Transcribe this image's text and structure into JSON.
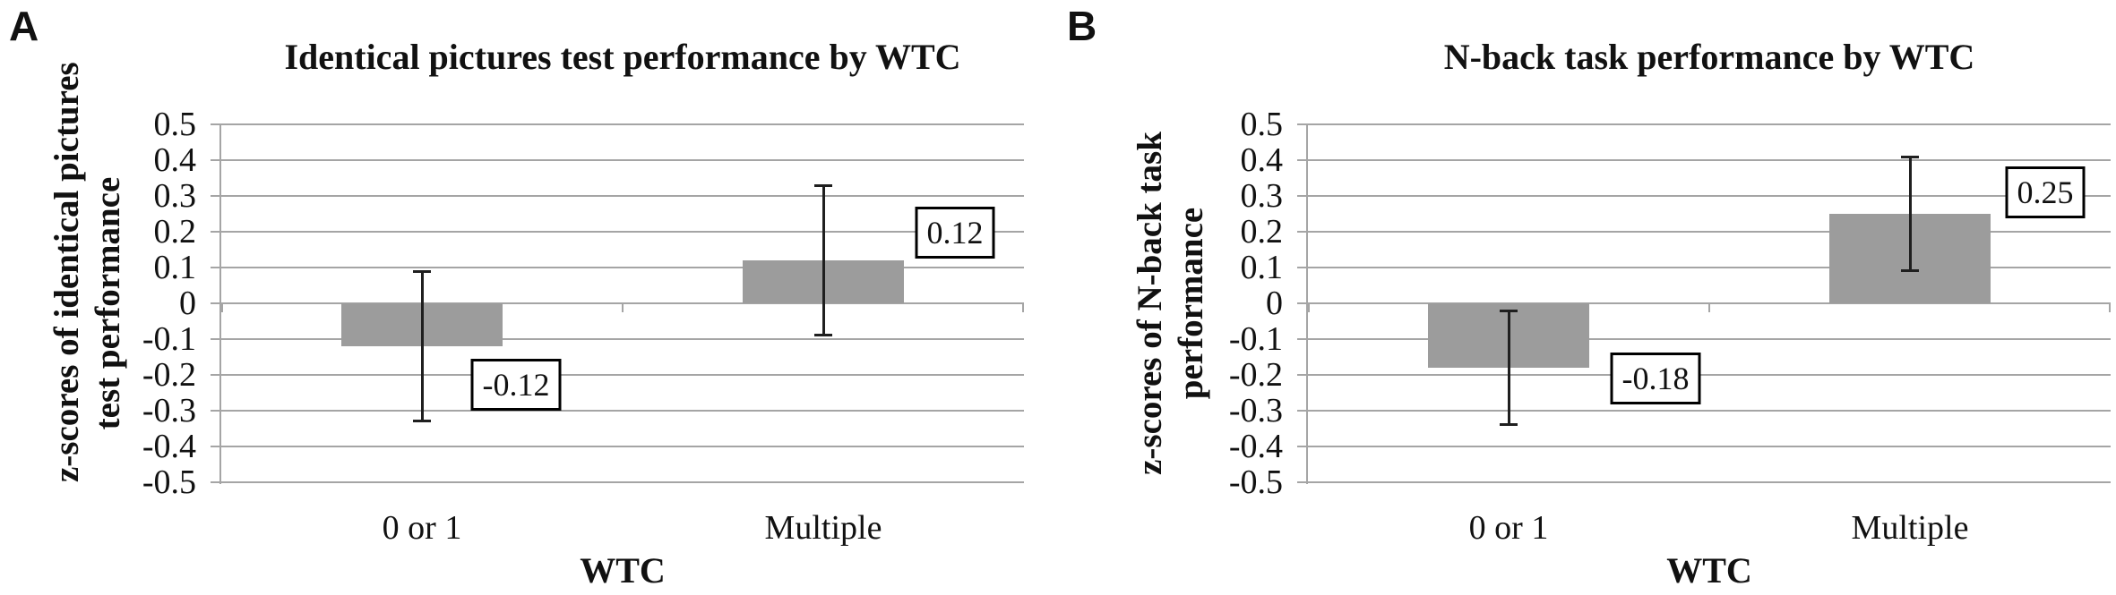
{
  "chart_data": [
    {
      "type": "bar",
      "panel_label": "A",
      "title": "Identical pictures test performance by WTC",
      "xlabel": "WTC",
      "ylabel": "z-scores of identical pictures test performance",
      "ylabel_lines": [
        "z-scores of identical pictures",
        "test performance"
      ],
      "categories": [
        "0 or 1",
        "Multiple"
      ],
      "values": [
        -0.12,
        0.12
      ],
      "error_bars": [
        [
          -0.33,
          0.09
        ],
        [
          -0.09,
          0.33
        ]
      ],
      "data_labels": [
        "-0.12",
        "0.12"
      ],
      "ylim": [
        -0.5,
        0.5
      ],
      "ytick_labels": [
        "0.5",
        "0.4",
        "0.3",
        "0.2",
        "0.1",
        "0",
        "-0.1",
        "-0.2",
        "-0.3",
        "-0.4",
        "-0.5"
      ],
      "grid": true,
      "legend": "none",
      "bar_color": "#9c9c9c",
      "gridline_color": "#a5a5a5",
      "error_bar_color": "#1f1f1f"
    },
    {
      "type": "bar",
      "panel_label": "B",
      "title": "N-back task performance by WTC",
      "xlabel": "WTC",
      "ylabel": "z-scores of N-back task performance",
      "ylabel_lines": [
        "z-scores of N-back task",
        "performance"
      ],
      "categories": [
        "0 or 1",
        "Multiple"
      ],
      "values": [
        -0.18,
        0.25
      ],
      "error_bars": [
        [
          -0.34,
          -0.02
        ],
        [
          0.09,
          0.41
        ]
      ],
      "data_labels": [
        "-0.18",
        "0.25"
      ],
      "ylim": [
        -0.5,
        0.5
      ],
      "ytick_labels": [
        "0.5",
        "0.4",
        "0.3",
        "0.2",
        "0.1",
        "0",
        "-0.1",
        "-0.2",
        "-0.3",
        "-0.4",
        "-0.5"
      ],
      "grid": true,
      "legend": "none",
      "bar_color": "#9c9c9c",
      "gridline_color": "#a5a5a5",
      "error_bar_color": "#1f1f1f"
    }
  ]
}
